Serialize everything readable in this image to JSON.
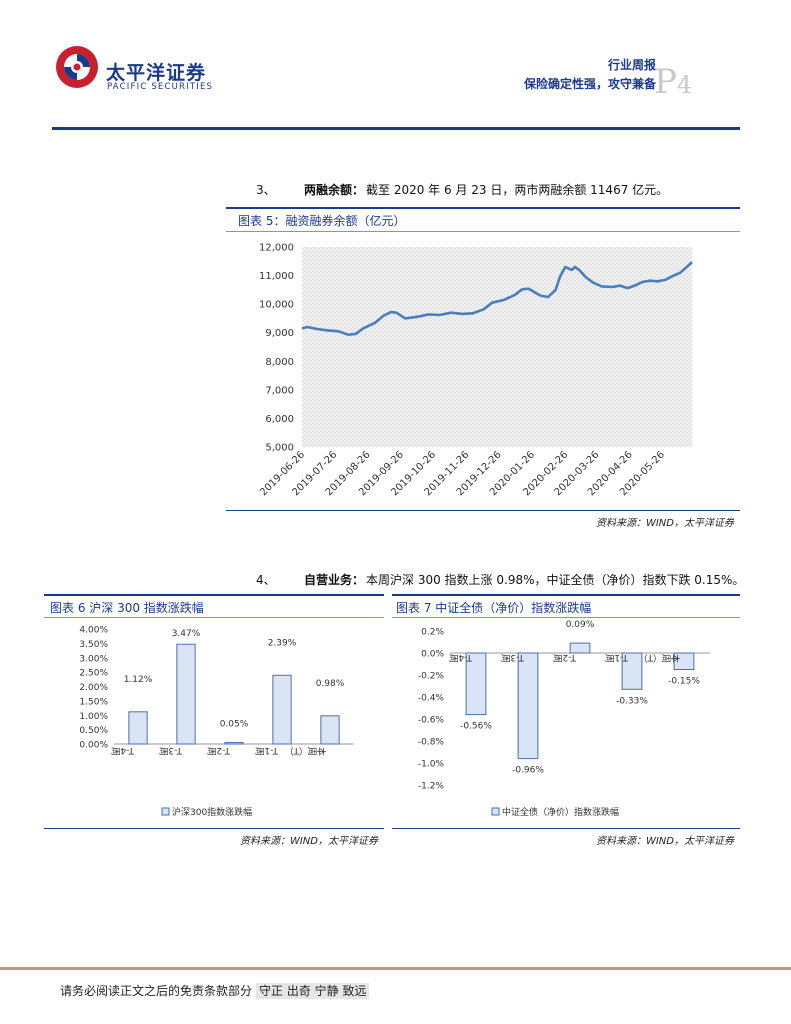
{
  "header": {
    "brand_cn": "太平洋证券",
    "brand_en": "PACIFIC SECURITIES",
    "report_type": "行业周报",
    "report_subtitle": "保险确定性强，攻守兼备",
    "page_letter": "P",
    "page_number": "4"
  },
  "section3": {
    "number": "3、",
    "heading": "两融余额：",
    "text": "截至 2020 年 6 月 23 日，两市两融余额 11467 亿元。"
  },
  "figure5": {
    "title": "图表 5：融资融券余额（亿元）",
    "source": "资料来源：WIND，太平洋证券"
  },
  "section4": {
    "number": "4、",
    "heading": "自营业务：",
    "text": "本周沪深 300 指数上涨 0.98%，中证全债（净价）指数下跌 0.15%。"
  },
  "figure6": {
    "title": "图表 6 沪深 300 指数涨跌幅",
    "source": "资料来源：WIND，太平洋证券"
  },
  "figure7": {
    "title": "图表 7 中证全债（净价）指数涨跌幅",
    "source": "资料来源：WIND，太平洋证券"
  },
  "chart_data": [
    {
      "id": "fig5",
      "type": "area",
      "ylim": [
        5000,
        12000
      ],
      "yticks": [
        "5,000",
        "6,000",
        "7,000",
        "8,000",
        "9,000",
        "10,000",
        "11,000",
        "12,000"
      ],
      "xticks": [
        "2019-06-26",
        "2019-07-26",
        "2019-08-26",
        "2019-09-26",
        "2019-10-26",
        "2019-11-26",
        "2019-12-26",
        "2020-01-26",
        "2020-02-26",
        "2020-03-26",
        "2020-04-26",
        "2020-05-26"
      ],
      "x_start": "2019-06-26",
      "x_end": "2020-06-23",
      "points": [
        [
          "2019-06-26",
          9150
        ],
        [
          "2019-07-01",
          9200
        ],
        [
          "2019-07-10",
          9130
        ],
        [
          "2019-07-20",
          9080
        ],
        [
          "2019-07-30",
          9050
        ],
        [
          "2019-08-08",
          8930
        ],
        [
          "2019-08-15",
          8960
        ],
        [
          "2019-08-22",
          9150
        ],
        [
          "2019-09-02",
          9350
        ],
        [
          "2019-09-10",
          9600
        ],
        [
          "2019-09-17",
          9720
        ],
        [
          "2019-09-22",
          9700
        ],
        [
          "2019-09-30",
          9500
        ],
        [
          "2019-10-12",
          9560
        ],
        [
          "2019-10-22",
          9640
        ],
        [
          "2019-11-01",
          9620
        ],
        [
          "2019-11-12",
          9700
        ],
        [
          "2019-11-22",
          9660
        ],
        [
          "2019-12-02",
          9680
        ],
        [
          "2019-12-12",
          9820
        ],
        [
          "2019-12-20",
          10050
        ],
        [
          "2019-12-31",
          10150
        ],
        [
          "2020-01-10",
          10320
        ],
        [
          "2020-01-17",
          10520
        ],
        [
          "2020-01-23",
          10540
        ],
        [
          "2020-02-03",
          10300
        ],
        [
          "2020-02-10",
          10250
        ],
        [
          "2020-02-17",
          10500
        ],
        [
          "2020-02-21",
          10950
        ],
        [
          "2020-02-26",
          11300
        ],
        [
          "2020-03-03",
          11200
        ],
        [
          "2020-03-06",
          11300
        ],
        [
          "2020-03-10",
          11200
        ],
        [
          "2020-03-16",
          10950
        ],
        [
          "2020-03-23",
          10750
        ],
        [
          "2020-03-31",
          10620
        ],
        [
          "2020-04-10",
          10600
        ],
        [
          "2020-04-17",
          10650
        ],
        [
          "2020-04-24",
          10560
        ],
        [
          "2020-04-30",
          10640
        ],
        [
          "2020-05-08",
          10780
        ],
        [
          "2020-05-15",
          10820
        ],
        [
          "2020-05-22",
          10800
        ],
        [
          "2020-05-29",
          10850
        ],
        [
          "2020-06-05",
          10980
        ],
        [
          "2020-06-12",
          11100
        ],
        [
          "2020-06-23",
          11467
        ]
      ]
    },
    {
      "id": "fig6",
      "type": "bar",
      "categories": [
        "T-4周",
        "T-3周",
        "T-2周",
        "T-1周",
        "本周（T）"
      ],
      "values": [
        1.12,
        3.47,
        0.05,
        2.39,
        0.98
      ],
      "labels": [
        "1.12%",
        "3.47%",
        "0.05%",
        "2.39%",
        "0.98%"
      ],
      "ylim": [
        0,
        4
      ],
      "yticks": [
        "0.00%",
        "0.50%",
        "1.00%",
        "1.50%",
        "2.00%",
        "2.50%",
        "3.00%",
        "3.50%",
        "4.00%"
      ],
      "legend": "沪深300指数涨跌幅"
    },
    {
      "id": "fig7",
      "type": "bar",
      "categories": [
        "T-4周",
        "T-3周",
        "T-2周",
        "T-1周",
        "本周（T）"
      ],
      "values": [
        -0.56,
        -0.96,
        0.09,
        -0.33,
        -0.15
      ],
      "labels": [
        "-0.56%",
        "-0.96%",
        "0.09%",
        "-0.33%",
        "-0.15%"
      ],
      "ylim": [
        -1.2,
        0.2
      ],
      "yticks": [
        "-1.2%",
        "-1.0%",
        "-0.8%",
        "-0.6%",
        "-0.4%",
        "-0.2%",
        "0.0%",
        "0.2%"
      ],
      "legend": "中证全债（净价）指数涨跌幅"
    }
  ],
  "footer": {
    "disclaimer": "请务必阅读正文之后的免责条款部分",
    "motto": "守正 出奇 宁静 致远"
  },
  "colors": {
    "brand_blue": "#1b3a8c",
    "logo_red": "#c8202f",
    "line_blue": "#4a7cc0",
    "bar_fill": "#d9e4f5",
    "bar_stroke": "#4a6fb0",
    "footer_gold": "#b9a36a"
  }
}
